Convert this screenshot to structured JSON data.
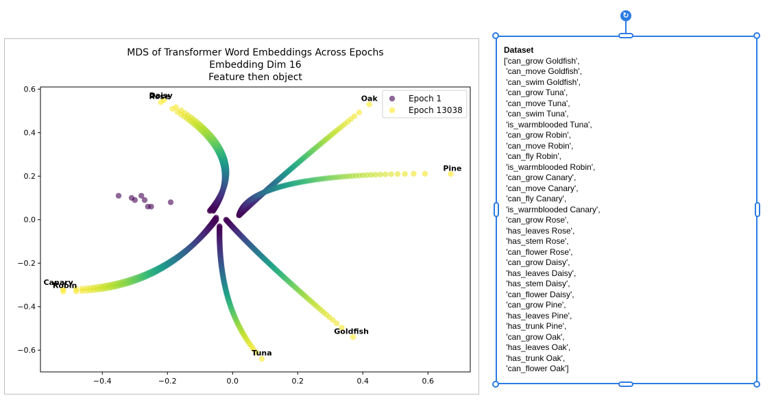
{
  "chart_data": {
    "type": "scatter",
    "title_lines": [
      "MDS of Transformer Word Embeddings Across Epochs",
      "Embedding Dim 16",
      "Feature then object"
    ],
    "xlim": [
      -0.59,
      0.73
    ],
    "ylim": [
      -0.7,
      0.61
    ],
    "xticks": [
      -0.4,
      -0.2,
      0.0,
      0.2,
      0.4,
      0.6
    ],
    "xtick_labels": [
      "−0.4",
      "−0.2",
      "0.0",
      "0.2",
      "0.4",
      "0.6"
    ],
    "yticks": [
      -0.6,
      -0.4,
      -0.2,
      0.0,
      0.2,
      0.4,
      0.6
    ],
    "ytick_labels": [
      "−0.6",
      "−0.4",
      "−0.2",
      "0.0",
      "0.2",
      "0.4",
      "0.6"
    ],
    "legend": {
      "placement": "top-right",
      "entries": [
        {
          "label": "Epoch 1",
          "color": "#440154"
        },
        {
          "label": "Epoch 13038",
          "color": "#fde725"
        }
      ]
    },
    "colormap": "viridis",
    "marker_alpha": 0.6,
    "trajectories": [
      {
        "name": "Goldfish",
        "start": [
          -0.02,
          0.0
        ],
        "mid": [
          0.14,
          -0.24
        ],
        "end": [
          0.37,
          -0.54
        ]
      },
      {
        "name": "Tuna",
        "start": [
          -0.04,
          -0.03
        ],
        "mid": [
          -0.01,
          -0.38
        ],
        "end": [
          0.09,
          -0.64
        ]
      },
      {
        "name": "Robin",
        "start": [
          -0.05,
          0.01
        ],
        "mid": [
          -0.25,
          -0.25
        ],
        "end": [
          -0.52,
          -0.33
        ]
      },
      {
        "name": "Canary",
        "start": [
          -0.05,
          0.0
        ],
        "mid": [
          -0.25,
          -0.24
        ],
        "end": [
          -0.52,
          -0.32
        ]
      },
      {
        "name": "Rose",
        "start": [
          -0.06,
          0.04
        ],
        "mid": [
          -0.04,
          0.3
        ],
        "end": [
          -0.22,
          0.54
        ]
      },
      {
        "name": "Daisy",
        "start": [
          -0.07,
          0.04
        ],
        "mid": [
          -0.03,
          0.3
        ],
        "end": [
          -0.21,
          0.55
        ]
      },
      {
        "name": "Oak",
        "start": [
          0.02,
          0.02
        ],
        "mid": [
          0.2,
          0.26
        ],
        "end": [
          0.42,
          0.53
        ]
      },
      {
        "name": "Pine",
        "start": [
          0.02,
          0.02
        ],
        "mid": [
          0.2,
          0.17
        ],
        "end": [
          0.67,
          0.21
        ]
      }
    ],
    "annotations": [
      {
        "text": "Daisy",
        "x": -0.22,
        "y": 0.56
      },
      {
        "text": "Rose",
        "x": -0.225,
        "y": 0.555
      },
      {
        "text": "Oak",
        "x": 0.42,
        "y": 0.545
      },
      {
        "text": "Pine",
        "x": 0.675,
        "y": 0.225
      },
      {
        "text": "Canary",
        "x": -0.535,
        "y": -0.3
      },
      {
        "text": "Robin",
        "x": -0.515,
        "y": -0.315
      },
      {
        "text": "Goldfish",
        "x": 0.365,
        "y": -0.525
      },
      {
        "text": "Tuna",
        "x": 0.09,
        "y": -0.625
      }
    ],
    "stray_points": [
      [
        -0.35,
        0.11
      ],
      [
        -0.31,
        0.1
      ],
      [
        -0.3,
        0.09
      ],
      [
        -0.28,
        0.11
      ],
      [
        -0.27,
        0.09
      ],
      [
        -0.26,
        0.06
      ],
      [
        -0.25,
        0.06
      ],
      [
        -0.19,
        0.08
      ]
    ]
  },
  "dataset_box": {
    "heading": "Dataset",
    "lines": [
      "['can_grow Goldfish',",
      " 'can_move Goldfish',",
      " 'can_swim Goldfish',",
      " 'can_grow Tuna',",
      " 'can_move Tuna',",
      " 'can_swim Tuna',",
      " 'is_warmblooded Tuna',",
      " 'can_grow Robin',",
      " 'can_move Robin',",
      " 'can_fly Robin',",
      " 'is_warmblooded Robin',",
      " 'can_grow Canary',",
      " 'can_move Canary',",
      " 'can_fly Canary',",
      " 'is_warmblooded Canary',",
      " 'can_grow Rose',",
      " 'has_leaves Rose',",
      " 'has_stem Rose',",
      " 'can_flower Rose',",
      " 'can_grow Daisy',",
      " 'has_leaves Daisy',",
      " 'has_stem Daisy',",
      " 'can_flower Daisy',",
      " 'can_grow Pine',",
      " 'has_leaves Pine',",
      " 'has_trunk Pine',",
      " 'can_grow Oak',",
      " 'has_leaves Oak',",
      " 'has_trunk Oak',",
      " 'can_flower Oak']"
    ]
  },
  "rotate_icon": "rotate-icon",
  "selection_color": "#2a7be4"
}
